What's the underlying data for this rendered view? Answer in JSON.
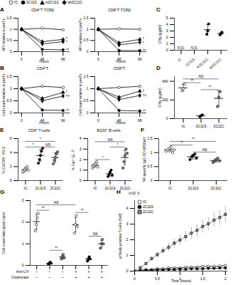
{
  "chart_data": [
    {
      "panel": "A",
      "type": "line",
      "title": "CD4⁺T TCRβ",
      "xlabel": "Hours",
      "ylabel": "MFI relative to preTx",
      "x": [
        0,
        48,
        96
      ],
      "xlim": [
        -8,
        112
      ],
      "xticks": [
        0,
        48,
        96
      ],
      "ylim": [
        0,
        1.5
      ],
      "yticks": [
        0,
        0.5,
        1,
        1.5
      ],
      "legend": "top",
      "series": [
        {
          "name": "IC",
          "color": "#000000",
          "marker": "circle-open",
          "values": [
            1,
            1.05,
            0.98
          ]
        },
        {
          "name": "2C11S",
          "color": "#000000",
          "marker": "circle",
          "values": [
            1,
            0.1,
            0.08
          ]
        },
        {
          "name": "m2C11C",
          "color": "#000000",
          "marker": "triangle",
          "values": [
            1,
            0.45,
            0.55
          ]
        },
        {
          "name": "ah2C11C",
          "color": "#000000",
          "marker": "diamond",
          "values": [
            1,
            0.35,
            0.45
          ]
        }
      ],
      "annotations": [
        {
          "x": 96,
          "y": 0.58,
          "text": "*"
        },
        {
          "x": 96,
          "y": 0.42,
          "text": "*"
        },
        {
          "x": 96,
          "y": 0.08,
          "text": "**"
        }
      ]
    },
    {
      "type": "line",
      "title": "CD8⁺T TCRβ",
      "xlabel": "Hours",
      "ylabel": "MFI relative to preTx",
      "x": [
        0,
        48,
        96
      ],
      "xlim": [
        -8,
        112
      ],
      "xticks": [
        0,
        48,
        96
      ],
      "ylim": [
        0,
        1.5
      ],
      "yticks": [
        0,
        0.5,
        1,
        1.5
      ],
      "series": [
        {
          "name": "IC",
          "color": "#000000",
          "marker": "circle-open",
          "values": [
            1,
            1.02,
            1.0
          ]
        },
        {
          "name": "2C11S",
          "color": "#000000",
          "marker": "circle",
          "values": [
            1,
            0.05,
            0.05
          ]
        },
        {
          "name": "m2C11C",
          "color": "#000000",
          "marker": "triangle",
          "values": [
            1,
            0.4,
            0.55
          ]
        },
        {
          "name": "ah2C11C",
          "color": "#000000",
          "marker": "diamond",
          "values": [
            1,
            0.3,
            0.42
          ]
        }
      ],
      "annotations": [
        {
          "x": 96,
          "y": 0.58,
          "text": "*"
        },
        {
          "x": 96,
          "y": 0.4,
          "text": "*"
        },
        {
          "x": 96,
          "y": 0.05,
          "text": "**"
        }
      ]
    },
    {
      "panel": "C",
      "type": "scatter",
      "ylabel": "IFNγ (pg/ml)",
      "categories": [
        "IC",
        "2C11S",
        "m2C11C",
        "ah2C11C"
      ],
      "ylim": [
        0,
        5
      ],
      "yticks": [
        0,
        1,
        2,
        3,
        4,
        5
      ],
      "colors": [
        "#ffffff",
        "#000000",
        "#000000",
        "#000000"
      ],
      "points": [
        [],
        [],
        [
          2.5,
          3.0,
          4.1
        ],
        [
          2.4,
          2.6,
          2.8
        ]
      ],
      "values": [
        null,
        null,
        3.2,
        2.6
      ],
      "errors": [
        null,
        null,
        0.8,
        0.2
      ],
      "annotations": [
        {
          "x": 0,
          "y": 0.4,
          "text": "N.D."
        },
        {
          "x": 1,
          "y": 0.4,
          "text": "N.D."
        }
      ]
    },
    {
      "panel": "B",
      "type": "line",
      "title": "CD4⁺T",
      "xlabel": "Hours",
      "ylabel": "Cell count relative to preTx",
      "x": [
        0,
        48,
        96
      ],
      "xlim": [
        -8,
        112
      ],
      "xticks": [
        0,
        48,
        96
      ],
      "ylim": [
        0,
        1.5
      ],
      "yticks": [
        0,
        0.5,
        1,
        1.5
      ],
      "series": [
        {
          "name": "IC",
          "color": "#000000",
          "marker": "circle-open",
          "values": [
            1,
            1.1,
            1.05
          ]
        },
        {
          "name": "2C11S",
          "color": "#000000",
          "marker": "circle",
          "values": [
            1,
            0.12,
            0.1
          ]
        },
        {
          "name": "m2C11C",
          "color": "#000000",
          "marker": "triangle",
          "values": [
            1,
            0.6,
            0.85
          ]
        },
        {
          "name": "ah2C11C",
          "color": "#000000",
          "marker": "diamond",
          "values": [
            1,
            0.5,
            0.7
          ]
        }
      ],
      "annotations": [
        {
          "x": 96,
          "y": 0.86,
          "text": "*"
        },
        {
          "x": 96,
          "y": 0.68,
          "text": "*†"
        },
        {
          "x": 96,
          "y": 0.1,
          "text": "**"
        }
      ]
    },
    {
      "type": "line",
      "title": "CD8⁺T",
      "xlabel": "Hours",
      "ylabel": "Cell count relative to preTx",
      "x": [
        0,
        48,
        96
      ],
      "xlim": [
        -8,
        112
      ],
      "xticks": [
        0,
        48,
        96
      ],
      "ylim": [
        0,
        1.5
      ],
      "yticks": [
        0,
        0.5,
        1,
        1.5
      ],
      "series": [
        {
          "name": "IC",
          "color": "#000000",
          "marker": "circle-open",
          "values": [
            1,
            1.05,
            1.1
          ]
        },
        {
          "name": "2C11S",
          "color": "#000000",
          "marker": "circle",
          "values": [
            1,
            0.1,
            0.08
          ]
        },
        {
          "name": "m2C11C",
          "color": "#000000",
          "marker": "triangle",
          "values": [
            1,
            0.65,
            0.9
          ]
        },
        {
          "name": "ah2C11C",
          "color": "#000000",
          "marker": "diamond",
          "values": [
            1,
            0.55,
            0.72
          ]
        }
      ],
      "annotations": [
        {
          "x": 96,
          "y": 0.9,
          "text": "*"
        },
        {
          "x": 96,
          "y": 0.7,
          "text": "*†"
        },
        {
          "x": 96,
          "y": 0.08,
          "text": "**"
        }
      ]
    },
    {
      "panel": "D",
      "type": "scatter",
      "ylabel": "IFNγ (pg/ml)",
      "categories": [
        "IC",
        "2C11S",
        "2C11C"
      ],
      "ylim": [
        0,
        450
      ],
      "yticks": [
        0,
        200,
        400
      ],
      "colors": [
        "#ffffff",
        "#000000",
        "#808080"
      ],
      "points": [
        [
          300,
          320,
          370
        ],
        [
          20,
          30,
          40
        ],
        [
          130,
          230,
          290
        ]
      ],
      "values": [
        330,
        30,
        217
      ],
      "errors": [
        36,
        10,
        81
      ],
      "brackets": [
        {
          "from": 0,
          "to": 1,
          "y": 385,
          "label": "**"
        },
        {
          "from": 1,
          "to": 2,
          "y": 310,
          "label": "**"
        },
        {
          "from": 0,
          "to": 2,
          "y": 425,
          "label": "NS"
        }
      ]
    },
    {
      "panel": "E",
      "type": "scatter",
      "title": "CD4⁺ T-cells",
      "ylabel": "% CXCR5⁺ PD-1⁺",
      "categories": [
        "IC",
        "2C11S",
        "2C11C"
      ],
      "ylim": [
        0,
        6
      ],
      "yticks": [
        0,
        2,
        4,
        6
      ],
      "colors": [
        "#ffffff",
        "#000000",
        "#808080"
      ],
      "points": [
        [
          1.2,
          1.4,
          1.6,
          1.8,
          2.0,
          1.5
        ],
        [
          2.5,
          3.0,
          3.6,
          4.2,
          4.6
        ],
        [
          2.4,
          2.9,
          3.3,
          3.8,
          4.1
        ]
      ],
      "values": [
        1.58,
        3.58,
        3.3
      ],
      "errors": [
        0.28,
        0.85,
        0.68
      ],
      "brackets": [
        {
          "from": 0,
          "to": 1,
          "y": 4.8,
          "label": "*"
        },
        {
          "from": 1,
          "to": 2,
          "y": 4.8,
          "label": "NS"
        },
        {
          "from": 0,
          "to": 2,
          "y": 5.6,
          "label": "*"
        }
      ]
    },
    {
      "type": "scatter",
      "title": "B220⁺ B-cells",
      "ylabel": "% Fas⁺ GL-7⁺",
      "categories": [
        "IC",
        "2C11S",
        "2C11C"
      ],
      "ylim": [
        0,
        4
      ],
      "yticks": [
        0,
        1,
        2,
        3,
        4
      ],
      "colors": [
        "#ffffff",
        "#000000",
        "#808080"
      ],
      "points": [
        [
          1.2,
          1.4,
          1.5,
          1.6,
          1.8,
          1.3
        ],
        [
          0.4,
          0.6,
          0.8,
          1.0,
          0.5
        ],
        [
          1.2,
          1.8,
          2.4,
          3.0,
          2.6
        ]
      ],
      "values": [
        1.47,
        0.66,
        2.2
      ],
      "errors": [
        0.2,
        0.24,
        0.7
      ],
      "brackets": [
        {
          "from": 0,
          "to": 1,
          "y": 2.0,
          "label": "*"
        },
        {
          "from": 1,
          "to": 2,
          "y": 3.2,
          "label": "*"
        },
        {
          "from": 0,
          "to": 2,
          "y": 3.7,
          "label": "NS"
        }
      ]
    },
    {
      "panel": "F",
      "type": "scatter",
      "ylabel": "NP-specific IgG OD (450nm)",
      "categories": [
        "IC",
        "2C11S",
        "2C11C"
      ],
      "ylim": [
        0,
        1.5
      ],
      "yticks": [
        0,
        0.5,
        1,
        1.5
      ],
      "colors": [
        "#ffffff",
        "#000000",
        "#808080"
      ],
      "points": [
        [
          1.05,
          1.1,
          1.15,
          1.2,
          1.0,
          1.1
        ],
        [
          0.75,
          0.85,
          0.9,
          0.95,
          0.8
        ],
        [
          0.65,
          0.7,
          0.75,
          0.8,
          0.7
        ]
      ],
      "values": [
        1.1,
        0.85,
        0.72
      ],
      "errors": [
        0.07,
        0.08,
        0.06
      ],
      "brackets": [
        {
          "from": 0,
          "to": 1,
          "y": 1.27,
          "label": "**"
        },
        {
          "from": 1,
          "to": 2,
          "y": 1.02,
          "label": "NS"
        },
        {
          "from": 0,
          "to": 2,
          "y": 1.4,
          "label": "**"
        }
      ]
    },
    {
      "panel": "G",
      "type": "scatter",
      "ylabel": "Cell count ratio (post / pre)",
      "categories": [
        null,
        null,
        null,
        null,
        null,
        null
      ],
      "ylim": [
        0,
        3
      ],
      "yticks": [
        0,
        1,
        2,
        3
      ],
      "colors": [
        "#ffffff",
        "#000000",
        "#808080",
        "#ffffff",
        "#000000",
        "#808080"
      ],
      "points": [
        [
          1.6,
          1.9,
          2.2,
          2.4
        ],
        [
          0.05,
          0.1,
          0.15,
          0.1
        ],
        [
          0.3,
          0.4,
          0.5,
          0.35
        ],
        [
          1.5,
          1.9,
          2.3,
          1.8
        ],
        [
          0.2,
          0.3,
          0.4,
          0.3
        ],
        [
          0.8,
          1.0,
          1.2,
          1.0
        ]
      ],
      "values": [
        2.03,
        0.1,
        0.39,
        1.88,
        0.3,
        1.0
      ],
      "errors": [
        0.35,
        0.04,
        0.09,
        0.33,
        0.08,
        0.16
      ],
      "rows": [
        {
          "name": "Anti-L/V",
          "values": [
            "−",
            "−",
            "−",
            "+",
            "+",
            "+"
          ]
        },
        {
          "name": "Clodronate",
          "values": [
            "−",
            "−",
            "−",
            "+",
            "+",
            "+"
          ]
        }
      ],
      "brackets": [
        {
          "from": 0,
          "to": 1,
          "y": 2.55,
          "label": "**"
        },
        {
          "from": 1,
          "to": 2,
          "y": 0.7,
          "label": "**"
        },
        {
          "from": 3,
          "to": 4,
          "y": 2.45,
          "label": "**"
        },
        {
          "from": 4,
          "to": 5,
          "y": 1.35,
          "label": "NS"
        },
        {
          "from": 0,
          "to": 3,
          "y": 2.8,
          "label": "NS"
        }
      ]
    },
    {
      "panel": "H",
      "type": "line",
      "subtitle": "(×10⁻²)",
      "xlabel": "Time (hours)",
      "ylabel": "pHrodo-positive T-cells (fold)",
      "x": [
        0,
        0.125,
        0.25,
        0.375,
        0.5,
        0.625,
        0.75,
        0.875,
        1,
        1.125,
        1.25,
        1.375,
        1.5,
        1.625,
        1.75,
        1.875,
        2
      ],
      "xlim": [
        0,
        2.05
      ],
      "xticks": [
        0,
        0.5,
        1,
        1.5,
        2
      ],
      "ylim": [
        0,
        4.5
      ],
      "yticks": [
        0,
        1,
        2,
        3,
        4
      ],
      "legend": "top-left",
      "series": [
        {
          "name": "IC",
          "color": "#000000",
          "marker": "circle-open",
          "values": [
            0,
            0.05,
            0.1,
            0.1,
            0.15,
            0.15,
            0.2,
            0.2,
            0.2,
            0.25,
            0.25,
            0.25,
            0.3,
            0.3,
            0.3,
            0.32,
            0.35
          ]
        },
        {
          "name": "2C11S",
          "color": "#000000",
          "marker": "circle",
          "values": [
            0,
            0.02,
            0.05,
            0.05,
            0.08,
            0.08,
            0.1,
            0.1,
            0.12,
            0.12,
            0.15,
            0.15,
            0.15,
            0.18,
            0.18,
            0.2,
            0.2
          ]
        },
        {
          "name": "2C11C",
          "color": "#808080",
          "marker": "square",
          "values": [
            0,
            0.22,
            0.48,
            0.8,
            1.05,
            1.3,
            1.52,
            1.78,
            1.98,
            2.2,
            2.42,
            2.6,
            2.85,
            3.02,
            3.25,
            3.42,
            3.62
          ],
          "errors": [
            0,
            0.05,
            0.1,
            0.14,
            0.18,
            0.2,
            0.24,
            0.28,
            0.3,
            0.33,
            0.35,
            0.38,
            0.4,
            0.43,
            0.45,
            0.48,
            0.5
          ]
        }
      ]
    }
  ]
}
